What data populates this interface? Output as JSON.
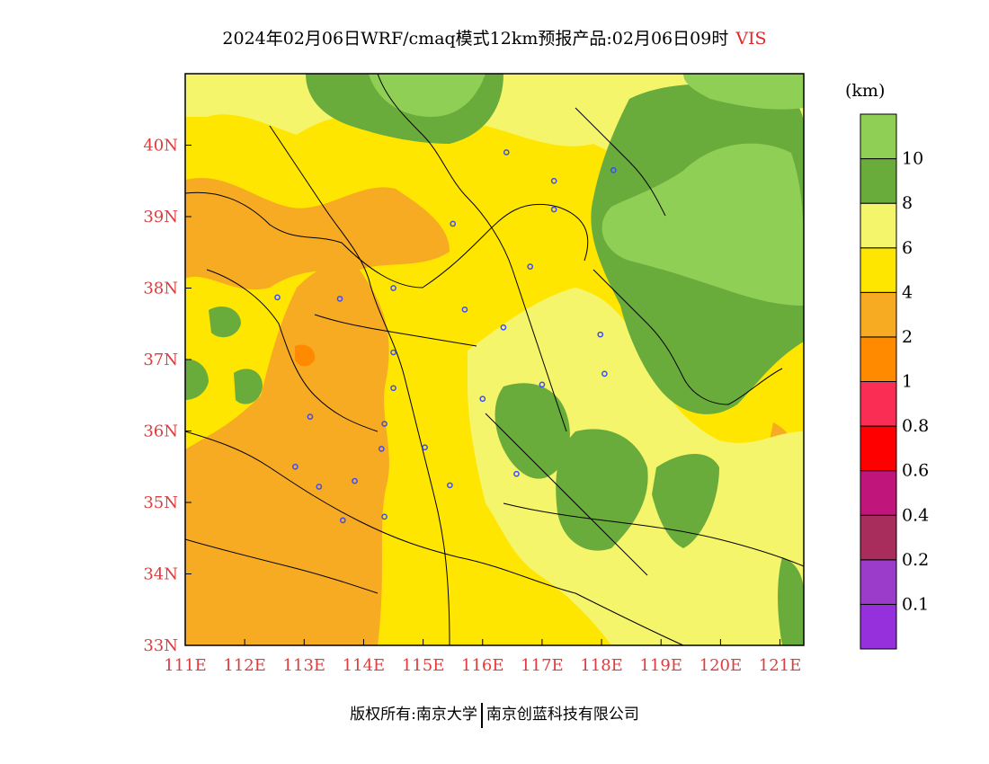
{
  "title": {
    "main": "2024年02月06日WRF/cmaq模式12km预报产品:02月06日09时",
    "variable": "VIS"
  },
  "unit": "(km)",
  "footer": {
    "left": "版权所有:南京大学",
    "right": "南京创蓝科技有限公司"
  },
  "map": {
    "lon_range": [
      111,
      121.4
    ],
    "lat_range": [
      33,
      41
    ],
    "lon_ticks": [
      "111E",
      "112E",
      "113E",
      "114E",
      "115E",
      "116E",
      "117E",
      "118E",
      "119E",
      "120E",
      "121E"
    ],
    "lat_ticks": [
      "33N",
      "34N",
      "35N",
      "36N",
      "37N",
      "38N",
      "39N",
      "40N"
    ]
  },
  "colorbar": {
    "colors": [
      "#9630dc",
      "#9b3ccb",
      "#a82c5c",
      "#c0157a",
      "#ff0000",
      "#fa2d55",
      "#ff8a00",
      "#f7ab23",
      "#ffe600",
      "#f5f56c",
      "#6aac3c",
      "#90cf55"
    ],
    "labels": [
      "0.1",
      "0.2",
      "0.4",
      "0.6",
      "0.8",
      "1",
      "2",
      "4",
      "6",
      "8",
      "10"
    ]
  },
  "stations": [
    {
      "lon": 116.4,
      "lat": 39.9
    },
    {
      "lon": 117.2,
      "lat": 39.1
    },
    {
      "lon": 115.5,
      "lat": 38.9
    },
    {
      "lon": 114.5,
      "lat": 38.0
    },
    {
      "lon": 116.8,
      "lat": 38.3
    },
    {
      "lon": 112.55,
      "lat": 37.87
    },
    {
      "lon": 113.6,
      "lat": 37.85
    },
    {
      "lon": 115.7,
      "lat": 37.7
    },
    {
      "lon": 116.35,
      "lat": 37.45
    },
    {
      "lon": 117.98,
      "lat": 37.35
    },
    {
      "lon": 114.5,
      "lat": 37.1
    },
    {
      "lon": 118.05,
      "lat": 36.8
    },
    {
      "lon": 117.0,
      "lat": 36.65
    },
    {
      "lon": 114.5,
      "lat": 36.6
    },
    {
      "lon": 116.0,
      "lat": 36.45
    },
    {
      "lon": 113.1,
      "lat": 36.2
    },
    {
      "lon": 114.35,
      "lat": 36.1
    },
    {
      "lon": 115.03,
      "lat": 35.77
    },
    {
      "lon": 114.3,
      "lat": 35.75
    },
    {
      "lon": 112.85,
      "lat": 35.5
    },
    {
      "lon": 116.57,
      "lat": 35.4
    },
    {
      "lon": 113.85,
      "lat": 35.3
    },
    {
      "lon": 113.25,
      "lat": 35.22
    },
    {
      "lon": 115.45,
      "lat": 35.24
    },
    {
      "lon": 114.35,
      "lat": 34.8
    },
    {
      "lon": 113.65,
      "lat": 34.75
    },
    {
      "lon": 117.2,
      "lat": 39.5
    },
    {
      "lon": 118.2,
      "lat": 39.65
    }
  ]
}
